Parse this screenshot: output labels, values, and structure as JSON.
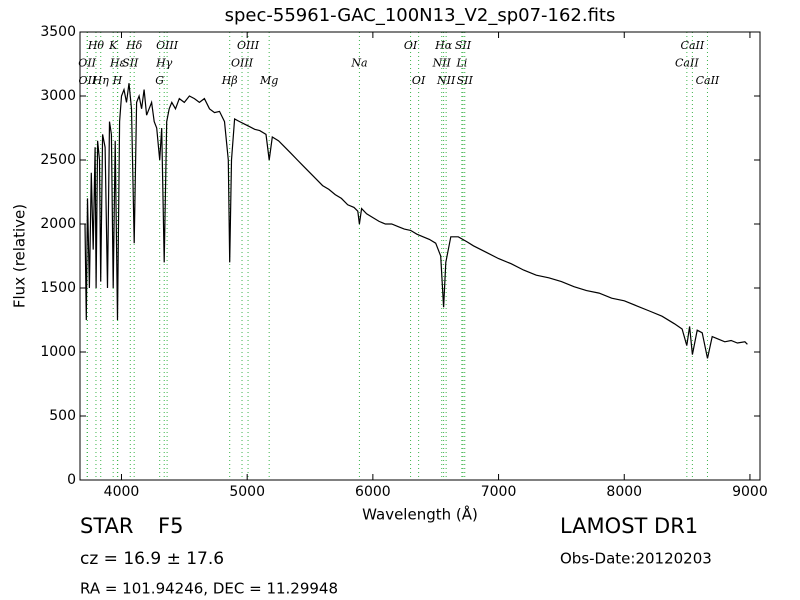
{
  "chart_data": {
    "type": "line",
    "title": "spec-55961-GAC_100N13_V2_sp07-162.fits",
    "x_label": "Wavelength (Å)",
    "y_label": "Flux (relative)",
    "xlim": [
      3670,
      9080
    ],
    "ylim": [
      0,
      3500
    ],
    "xticks": [
      4000,
      5000,
      6000,
      7000,
      8000,
      9000
    ],
    "yticks": [
      0,
      500,
      1000,
      1500,
      2000,
      2500,
      3000,
      3500
    ],
    "series": [
      {
        "name": "Flux",
        "color": "#000000",
        "x": [
          3710,
          3720,
          3730,
          3745,
          3760,
          3775,
          3790,
          3798,
          3810,
          3825,
          3835,
          3850,
          3870,
          3889,
          3905,
          3920,
          3934,
          3950,
          3968,
          3985,
          4000,
          4020,
          4040,
          4060,
          4080,
          4101,
          4120,
          4140,
          4160,
          4180,
          4200,
          4220,
          4240,
          4260,
          4280,
          4304,
          4320,
          4340,
          4360,
          4380,
          4400,
          4430,
          4460,
          4500,
          4540,
          4580,
          4620,
          4660,
          4700,
          4740,
          4780,
          4820,
          4850,
          4861,
          4875,
          4900,
          4940,
          4980,
          5020,
          5060,
          5100,
          5150,
          5175,
          5200,
          5250,
          5300,
          5350,
          5400,
          5450,
          5500,
          5550,
          5600,
          5650,
          5700,
          5750,
          5800,
          5850,
          5880,
          5893,
          5910,
          5950,
          6000,
          6050,
          6100,
          6150,
          6200,
          6250,
          6300,
          6350,
          6400,
          6450,
          6500,
          6540,
          6563,
          6580,
          6620,
          6680,
          6750,
          6800,
          6900,
          7000,
          7100,
          7200,
          7300,
          7400,
          7500,
          7600,
          7700,
          7800,
          7900,
          8000,
          8100,
          8200,
          8300,
          8400,
          8460,
          8498,
          8520,
          8542,
          8580,
          8620,
          8662,
          8700,
          8750,
          8800,
          8850,
          8900,
          8960,
          8980
        ],
        "values": [
          2000,
          1250,
          2200,
          1500,
          2400,
          1800,
          2600,
          1500,
          2650,
          2500,
          1550,
          2700,
          2600,
          1500,
          2800,
          2700,
          1500,
          2650,
          1250,
          2800,
          3000,
          3050,
          2950,
          3100,
          2900,
          1850,
          2950,
          3000,
          2900,
          3050,
          2850,
          2900,
          2950,
          2800,
          2750,
          2500,
          2750,
          1700,
          2800,
          2900,
          2950,
          2900,
          2980,
          2950,
          3000,
          2980,
          2950,
          2980,
          2900,
          2870,
          2880,
          2800,
          2500,
          1700,
          2500,
          2820,
          2800,
          2780,
          2760,
          2740,
          2730,
          2700,
          2500,
          2680,
          2650,
          2600,
          2550,
          2500,
          2450,
          2400,
          2350,
          2300,
          2270,
          2230,
          2200,
          2150,
          2130,
          2100,
          2000,
          2120,
          2080,
          2050,
          2020,
          2000,
          2000,
          1980,
          1960,
          1950,
          1920,
          1900,
          1880,
          1850,
          1750,
          1350,
          1700,
          1900,
          1900,
          1860,
          1830,
          1780,
          1730,
          1690,
          1640,
          1600,
          1580,
          1550,
          1510,
          1480,
          1460,
          1420,
          1400,
          1360,
          1320,
          1280,
          1220,
          1180,
          1050,
          1200,
          980,
          1170,
          1150,
          950,
          1120,
          1100,
          1080,
          1090,
          1070,
          1080,
          1060
        ]
      }
    ],
    "annotation_color": "#3cb44b",
    "annotation_rows": [
      [
        {
          "label": "Hθ",
          "x": 3797
        },
        {
          "label": "K",
          "x": 3934
        },
        {
          "label": "Hδ",
          "x": 4101
        },
        {
          "label": "OIII",
          "x": 4363
        },
        {
          "label": "OIII",
          "x": 5007
        },
        {
          "label": "OI",
          "x": 6300
        },
        {
          "label": "Hα",
          "x": 6563
        },
        {
          "label": "SII",
          "x": 6717
        },
        {
          "label": "CaII",
          "x": 8542
        }
      ],
      [
        {
          "label": "OII",
          "x": 3727
        },
        {
          "label": "Hε",
          "x": 3970
        },
        {
          "label": "SII",
          "x": 4070
        },
        {
          "label": "Hγ",
          "x": 4340
        },
        {
          "label": "OIII",
          "x": 4959
        },
        {
          "label": "Na",
          "x": 5893
        },
        {
          "label": "NII",
          "x": 6548
        },
        {
          "label": "Li",
          "x": 6708
        },
        {
          "label": "CaII",
          "x": 8498
        }
      ],
      [
        {
          "label": "OII",
          "x": 3729
        },
        {
          "label": "Hη",
          "x": 3835
        },
        {
          "label": "H",
          "x": 3968
        },
        {
          "label": "G",
          "x": 4304
        },
        {
          "label": "Hβ",
          "x": 4861
        },
        {
          "label": "Mg",
          "x": 5175
        },
        {
          "label": "OI",
          "x": 6364
        },
        {
          "label": "NII",
          "x": 6583
        },
        {
          "label": "SII",
          "x": 6731
        },
        {
          "label": "CaII",
          "x": 8662
        }
      ]
    ],
    "info": {
      "object_class": "STAR",
      "subclass": "F5",
      "cz": "cz = 16.9 ± 17.6",
      "coords": "RA = 101.94246, DEC = 11.29948",
      "survey": "LAMOST DR1",
      "obs_date": "Obs-Date:20120203"
    }
  }
}
